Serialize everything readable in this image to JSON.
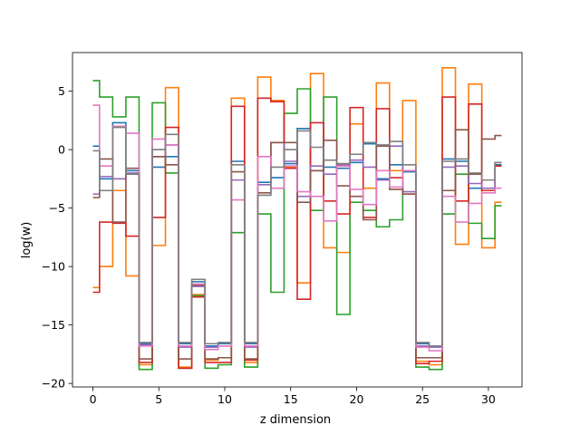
{
  "chart_data": {
    "type": "line",
    "drawstyle": "steps-mid",
    "title": "",
    "xlabel": "z dimension",
    "ylabel": "log(w)",
    "xlim": [
      -1.55,
      32.55
    ],
    "ylim": [
      -20.3,
      8.3
    ],
    "xticks": [
      0,
      5,
      10,
      15,
      20,
      25,
      30
    ],
    "yticks": [
      -20,
      -15,
      -10,
      -5,
      0,
      5
    ],
    "grid": false,
    "legend": "none",
    "x": [
      0,
      1,
      2,
      3,
      4,
      5,
      6,
      7,
      8,
      9,
      10,
      11,
      12,
      13,
      14,
      15,
      16,
      17,
      18,
      19,
      20,
      21,
      22,
      23,
      24,
      25,
      26,
      27,
      28,
      29,
      30,
      31
    ],
    "series": [
      {
        "color": "#1f77b4",
        "values": [
          0.3,
          -2.5,
          2.3,
          -1.8,
          -16.6,
          -1.5,
          -0.6,
          -16.6,
          -11.3,
          -16.8,
          -16.6,
          -1.0,
          -16.6,
          -2.8,
          -2.4,
          -1.2,
          1.8,
          -1.8,
          -1.5,
          -1.6,
          -1.1,
          0.5,
          -2.5,
          -1.3,
          -1.9,
          -16.6,
          -16.8,
          -0.8,
          -1.0,
          -3.3,
          -3.5,
          -1.3
        ]
      },
      {
        "color": "#ff7f0e",
        "values": [
          -11.8,
          -10.0,
          -3.5,
          -10.8,
          -18.4,
          -8.2,
          5.3,
          -18.6,
          -12.4,
          -18.0,
          -17.8,
          4.4,
          -18.2,
          6.2,
          4.2,
          -1.5,
          -11.4,
          6.5,
          -8.4,
          -8.8,
          2.2,
          -3.3,
          5.7,
          -1.8,
          4.2,
          -18.1,
          -18.4,
          7.0,
          -8.1,
          5.6,
          -8.4,
          -4.5
        ]
      },
      {
        "color": "#2ca02c",
        "values": [
          5.9,
          4.5,
          2.8,
          4.5,
          -18.8,
          4.0,
          -2.0,
          -18.7,
          -12.5,
          -18.7,
          -18.4,
          -7.1,
          -18.6,
          -5.5,
          -12.2,
          3.1,
          5.2,
          -5.2,
          4.5,
          -14.1,
          -4.5,
          -5.2,
          -6.6,
          -6.0,
          -1.8,
          -18.6,
          -18.8,
          -5.5,
          -2.1,
          -6.3,
          -7.6,
          -4.8
        ]
      },
      {
        "color": "#d62728",
        "values": [
          -12.2,
          -6.2,
          -6.3,
          -7.4,
          -18.2,
          -5.8,
          1.9,
          -18.7,
          -12.6,
          -18.2,
          -18.2,
          3.7,
          -18.0,
          4.4,
          4.1,
          -1.6,
          -12.8,
          2.3,
          -4.4,
          -5.5,
          3.6,
          -5.8,
          3.5,
          -2.4,
          -3.8,
          -18.3,
          -18.1,
          4.5,
          -4.4,
          3.9,
          -3.5,
          -1.4
        ]
      },
      {
        "color": "#9467bd",
        "values": [
          -3.8,
          -2.3,
          -2.5,
          -2.0,
          -16.7,
          -0.6,
          0.4,
          -16.9,
          -11.7,
          -16.9,
          -16.8,
          -2.6,
          -16.9,
          -3.0,
          0.6,
          -1.0,
          -4.0,
          -1.4,
          -2.1,
          -1.3,
          -0.9,
          -1.5,
          -2.6,
          0.3,
          -3.6,
          -16.8,
          -16.9,
          -1.5,
          -1.4,
          -2.9,
          -3.3,
          -1.1
        ]
      },
      {
        "color": "#8c564b",
        "values": [
          -4.1,
          -0.8,
          -6.2,
          -1.6,
          -17.9,
          -0.6,
          -1.3,
          -17.9,
          -11.6,
          -17.9,
          -17.8,
          -1.9,
          -17.9,
          -3.7,
          0.6,
          0.6,
          -4.5,
          -1.8,
          0.8,
          -3.1,
          -4.0,
          -6.0,
          0.3,
          -3.4,
          -3.8,
          -17.8,
          -17.8,
          -3.5,
          1.7,
          -2.1,
          0.9,
          1.2
        ]
      },
      {
        "color": "#e377c2",
        "values": [
          3.8,
          -1.4,
          2.0,
          1.4,
          -16.8,
          0.9,
          0.4,
          -16.8,
          -11.5,
          -17.1,
          -16.8,
          -4.3,
          -16.8,
          -0.6,
          -3.3,
          -1.4,
          -3.6,
          -4.0,
          -6.1,
          -1.4,
          -3.4,
          -4.7,
          -1.8,
          -3.2,
          -1.8,
          -16.9,
          -17.2,
          -4.0,
          -6.2,
          -4.6,
          -3.7,
          -3.3
        ]
      },
      {
        "color": "#7f7f7f",
        "values": [
          -0.1,
          -3.5,
          1.9,
          -2.1,
          -16.5,
          0.0,
          1.3,
          -16.5,
          -11.1,
          -16.6,
          -16.5,
          -1.3,
          -16.5,
          -3.9,
          -1.5,
          0.0,
          1.6,
          0.2,
          -0.9,
          -1.2,
          -0.4,
          0.6,
          0.4,
          0.7,
          -1.3,
          -16.5,
          -16.8,
          -1.0,
          -0.8,
          -2.0,
          -2.6,
          -1.1
        ]
      }
    ]
  }
}
